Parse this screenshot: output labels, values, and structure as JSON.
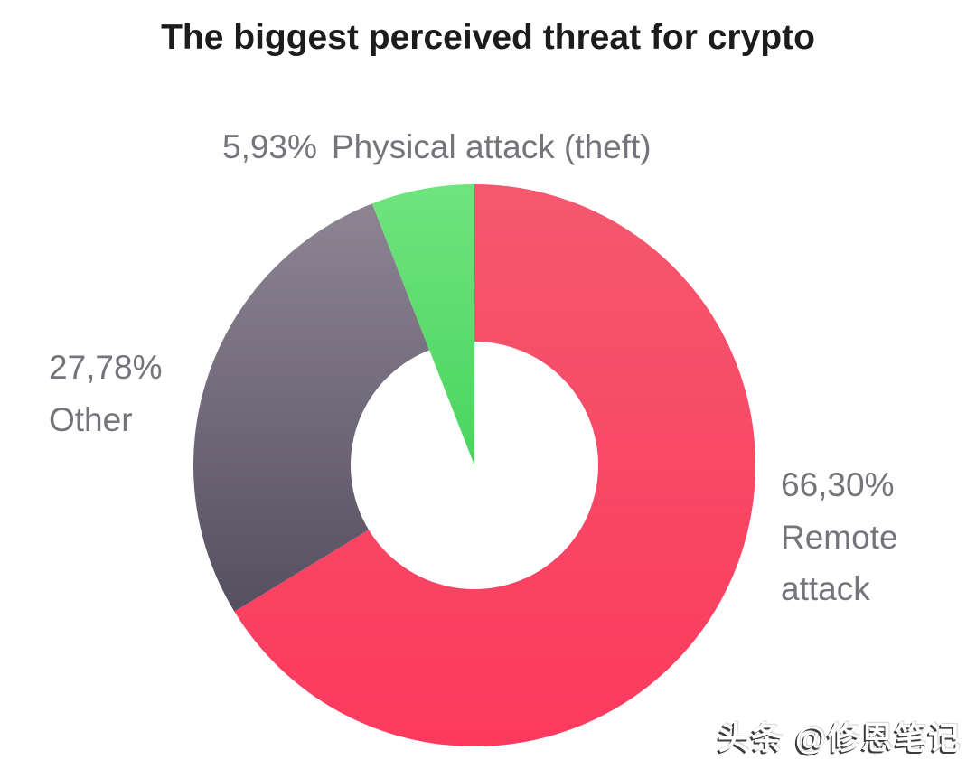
{
  "page": {
    "background": "#ffffff"
  },
  "chart_data": {
    "type": "pie",
    "variant": "donut",
    "title": "The biggest perceived threat for crypto",
    "legend_position": "callouts-around-chart",
    "donut_hole_ratio": 0.44,
    "start_angle_deg": 0,
    "direction": "clockwise",
    "slices": [
      {
        "label": "Remote attack",
        "display": "66,30%",
        "value": 66.3,
        "colors": [
          "#f4586f",
          "#fc3a5e"
        ],
        "shape": "ring"
      },
      {
        "label": "Other",
        "display": "27,78%",
        "value": 27.78,
        "colors": [
          "#8d8594",
          "#564f60"
        ],
        "shape": "ring"
      },
      {
        "label": "Physical attack (theft)",
        "display": "5,93%",
        "value": 5.93,
        "colors": [
          "#6fe47d",
          "#49d55e"
        ],
        "shape": "wedge-to-center"
      }
    ]
  },
  "watermark": {
    "text": "头条 @修恩笔记"
  }
}
